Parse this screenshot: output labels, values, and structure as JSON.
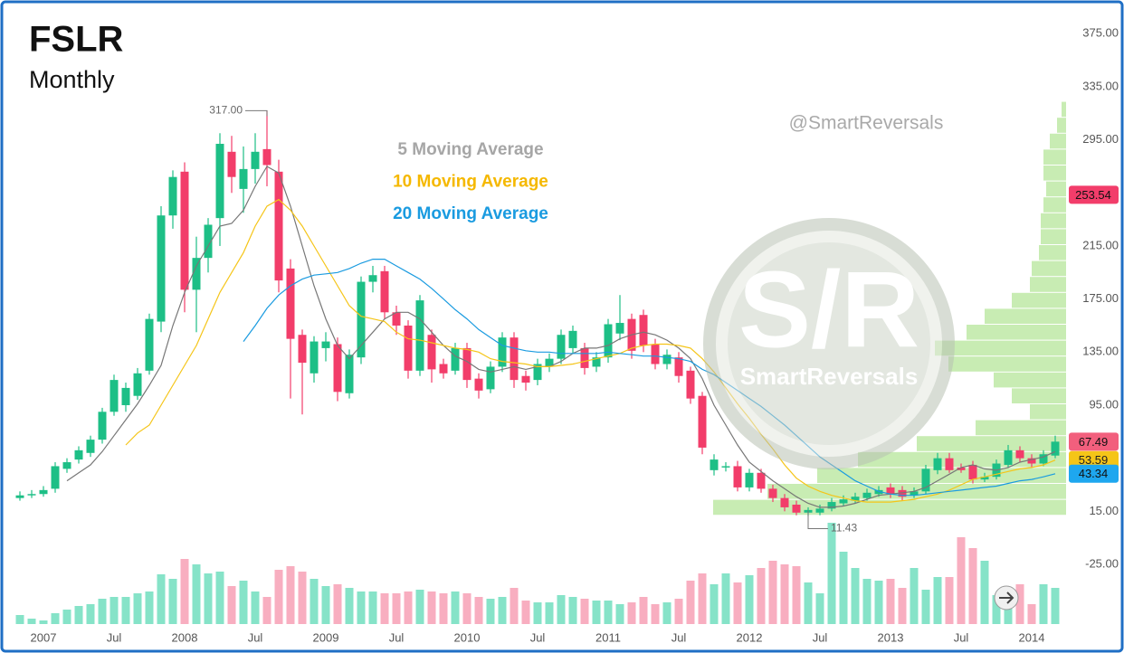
{
  "chart_data": {
    "type": "candlestick",
    "title": "FSLR",
    "subtitle": "Monthly",
    "watermark": "@SmartReversals",
    "logo_text": "S/R",
    "logo_caption": "SmartReversals",
    "categories": [
      null,
      null,
      "2007",
      null,
      null,
      null,
      null,
      null,
      "Jul",
      null,
      null,
      null,
      null,
      null,
      "2008",
      null,
      null,
      null,
      null,
      null,
      "Jul",
      null,
      null,
      null,
      null,
      null,
      "2009",
      null,
      null,
      null,
      null,
      null,
      "Jul",
      null,
      null,
      null,
      null,
      null,
      "2010",
      null,
      null,
      null,
      null,
      null,
      "Jul",
      null,
      null,
      null,
      null,
      null,
      "2011",
      null,
      null,
      null,
      null,
      null,
      "Jul",
      null,
      null,
      null,
      null,
      null,
      "2012",
      null,
      null,
      null,
      null,
      null,
      "Jul",
      null,
      null,
      null,
      null,
      null,
      "2013",
      null,
      null,
      null,
      null,
      null,
      "Jul",
      null,
      null,
      null,
      null,
      null,
      "2014",
      null,
      null
    ],
    "open": [
      25,
      27,
      28,
      32,
      47,
      54,
      59,
      69,
      90,
      95,
      102,
      121,
      158,
      238,
      271,
      182,
      206,
      236,
      286,
      258,
      273,
      288,
      271,
      198,
      148,
      119,
      138,
      141,
      104,
      131,
      188,
      196,
      165,
      155,
      121,
      148,
      126,
      121,
      138,
      115,
      107,
      124,
      146,
      117,
      114,
      124,
      130,
      138,
      138,
      124,
      131,
      149,
      160,
      163,
      141,
      126,
      131,
      121,
      102,
      46,
      48,
      49,
      33,
      44,
      32,
      25,
      20,
      14,
      14,
      17,
      21,
      23,
      25,
      28,
      33,
      31,
      27,
      30,
      46,
      55,
      48,
      50,
      39,
      41,
      50,
      61,
      55,
      51,
      57
    ],
    "high": [
      30,
      31,
      34,
      52,
      55,
      64,
      72,
      93,
      118,
      112,
      123,
      164,
      245,
      272,
      278,
      222,
      236,
      300,
      298,
      290,
      300,
      317,
      280,
      205,
      152,
      147,
      150,
      146,
      137,
      192,
      200,
      200,
      170,
      159,
      178,
      152,
      130,
      142,
      142,
      119,
      128,
      150,
      150,
      121,
      130,
      134,
      152,
      155,
      142,
      135,
      160,
      178,
      164,
      167,
      145,
      137,
      135,
      124,
      105,
      58,
      52,
      53,
      47,
      47,
      35,
      28,
      23,
      18,
      20,
      25,
      27,
      29,
      32,
      34,
      36,
      34,
      33,
      50,
      59,
      59,
      51,
      53,
      44,
      54,
      65,
      64,
      58,
      61,
      72
    ],
    "low": [
      23,
      25,
      26,
      29,
      44,
      51,
      56,
      66,
      87,
      90,
      99,
      118,
      150,
      228,
      165,
      150,
      195,
      215,
      255,
      240,
      262,
      260,
      180,
      100,
      88,
      112,
      128,
      98,
      100,
      126,
      180,
      160,
      148,
      115,
      117,
      112,
      115,
      118,
      108,
      100,
      104,
      120,
      108,
      106,
      110,
      120,
      126,
      134,
      118,
      120,
      127,
      144,
      130,
      135,
      122,
      122,
      112,
      96,
      58,
      42,
      45,
      30,
      30,
      29,
      22,
      15,
      12,
      11.43,
      12,
      15,
      19,
      21,
      23,
      26,
      25,
      23,
      25,
      28,
      43,
      44,
      44,
      36,
      37,
      39,
      48,
      52,
      48,
      49,
      55
    ],
    "close": [
      27,
      28,
      31,
      49,
      52,
      61,
      69,
      90,
      114,
      108,
      119,
      160,
      238,
      267,
      182,
      206,
      231,
      292,
      267,
      273,
      286,
      276,
      189,
      145,
      127,
      143,
      143,
      105,
      133,
      188,
      193,
      165,
      155,
      121,
      174,
      122,
      119,
      138,
      114,
      106,
      124,
      146,
      114,
      112,
      126,
      130,
      148,
      151,
      123,
      131,
      156,
      157,
      136,
      140,
      126,
      133,
      117,
      100,
      63,
      54,
      49,
      33,
      44,
      32,
      25,
      18,
      14,
      16,
      17,
      22,
      24,
      26,
      29,
      31,
      28,
      26,
      30,
      47,
      55,
      46,
      46,
      39,
      41,
      51,
      61,
      55,
      51,
      58,
      67.49
    ],
    "volume": [
      10,
      6,
      4,
      12,
      16,
      20,
      22,
      28,
      30,
      30,
      34,
      36,
      55,
      50,
      72,
      66,
      56,
      58,
      42,
      48,
      36,
      30,
      60,
      64,
      58,
      50,
      42,
      44,
      40,
      36,
      36,
      34,
      34,
      36,
      38,
      36,
      34,
      36,
      34,
      30,
      28,
      30,
      40,
      26,
      24,
      24,
      32,
      30,
      28,
      26,
      26,
      22,
      24,
      30,
      22,
      24,
      28,
      48,
      56,
      44,
      56,
      46,
      54,
      62,
      70,
      66,
      64,
      46,
      34,
      112,
      80,
      62,
      50,
      48,
      50,
      40,
      62,
      38,
      52,
      52,
      96,
      84,
      70,
      32,
      38,
      44,
      22,
      44,
      40
    ],
    "up_color": "#1dbf86",
    "down_color": "#f23d6a",
    "volume_up_color": "#86e3c8",
    "volume_down_color": "#f8aec0",
    "series": [
      {
        "name": "5 Moving Average",
        "color": "#a6a6a6",
        "line_color": "#777777",
        "values": [
          null,
          null,
          null,
          null,
          38,
          44,
          50,
          60,
          72,
          84,
          96,
          110,
          125,
          155,
          180,
          200,
          215,
          230,
          232,
          242,
          260,
          275,
          270,
          245,
          215,
          185,
          160,
          140,
          130,
          140,
          150,
          160,
          165,
          165,
          160,
          150,
          140,
          132,
          128,
          122,
          120,
          122,
          124,
          122,
          124,
          124,
          128,
          134,
          138,
          138,
          140,
          145,
          148,
          150,
          148,
          144,
          138,
          130,
          115,
          95,
          80,
          65,
          52,
          45,
          38,
          32,
          26,
          21,
          18,
          18,
          19,
          21,
          24,
          27,
          28,
          29,
          30,
          33,
          38,
          43,
          48,
          50,
          47,
          46,
          48,
          52,
          54,
          56,
          60
        ]
      },
      {
        "name": "10 Moving Average",
        "color": "#f5b800",
        "line_color": "#f5c518",
        "values": [
          null,
          null,
          null,
          null,
          null,
          null,
          null,
          null,
          null,
          65,
          74,
          80,
          95,
          110,
          125,
          140,
          160,
          180,
          195,
          210,
          230,
          245,
          250,
          242,
          230,
          215,
          200,
          185,
          170,
          162,
          160,
          158,
          150,
          145,
          144,
          142,
          140,
          138,
          137,
          135,
          130,
          128,
          127,
          126,
          124,
          124,
          125,
          126,
          128,
          130,
          132,
          134,
          138,
          140,
          141,
          141,
          140,
          138,
          130,
          120,
          108,
          96,
          85,
          73,
          62,
          50,
          40,
          34,
          30,
          27,
          25,
          23,
          22,
          22,
          22,
          23,
          24,
          26,
          28,
          31,
          35,
          39,
          41,
          43,
          45,
          47,
          48,
          50,
          53.59
        ]
      },
      {
        "name": "20 Moving Average",
        "color": "#1a9be0",
        "line_color": "#1a9be0",
        "values": [
          null,
          null,
          null,
          null,
          null,
          null,
          null,
          null,
          null,
          null,
          null,
          null,
          null,
          null,
          null,
          null,
          null,
          null,
          null,
          143,
          155,
          168,
          178,
          185,
          190,
          193,
          194,
          195,
          198,
          202,
          205,
          205,
          200,
          195,
          190,
          183,
          175,
          167,
          160,
          152,
          146,
          140,
          138,
          136,
          135,
          135,
          134,
          134,
          134,
          134,
          135,
          134,
          133,
          132,
          132,
          131,
          130,
          128,
          122,
          118,
          112,
          106,
          100,
          94,
          87,
          80,
          72,
          64,
          56,
          50,
          44,
          38,
          34,
          30,
          28,
          27,
          27,
          28,
          29,
          30,
          31,
          32,
          33,
          34,
          36,
          38,
          39,
          41,
          43.34
        ]
      }
    ],
    "volume_profile": {
      "color": "#b5e69a",
      "bins": [
        12,
        24,
        36,
        48,
        60,
        72,
        84,
        96,
        108,
        120,
        132,
        144,
        156,
        168,
        180,
        192,
        204,
        216,
        228,
        240,
        252,
        264,
        276,
        288,
        300,
        312,
        324
      ],
      "values": [
        390,
        330,
        275,
        230,
        165,
        100,
        40,
        60,
        80,
        130,
        145,
        110,
        90,
        60,
        40,
        38,
        30,
        28,
        28,
        25,
        22,
        25,
        25,
        18,
        10,
        5
      ]
    },
    "high_annotation": {
      "value": 317,
      "label": "317.00"
    },
    "low_annotation": 11.43,
    "price_labels": [
      {
        "value": 53.59,
        "color": "#f5c518",
        "text_color": "#222222"
      },
      {
        "value": 253.54,
        "color": "#f23d6a",
        "text_color": "#111111"
      },
      {
        "value": 67.49,
        "color": "#f25f7d",
        "text_color": "#111111"
      },
      {
        "value": 43.34,
        "color": "#1ea7ef",
        "text_color": "#111111"
      }
    ],
    "ylim": [
      -70,
      397
    ],
    "yticks": [
      {
        "value": 375,
        "label": "375.00"
      },
      {
        "value": 335,
        "label": "335.00"
      },
      {
        "value": 295,
        "label": "295.00"
      },
      {
        "value": 215,
        "label": "215.00"
      },
      {
        "value": 175,
        "label": "175.00"
      },
      {
        "value": 135,
        "label": "135.00"
      },
      {
        "value": 95,
        "label": "95.00"
      },
      {
        "value": 15,
        "label": "15.00"
      },
      {
        "value": -25,
        "label": "-25.00"
      }
    ]
  }
}
